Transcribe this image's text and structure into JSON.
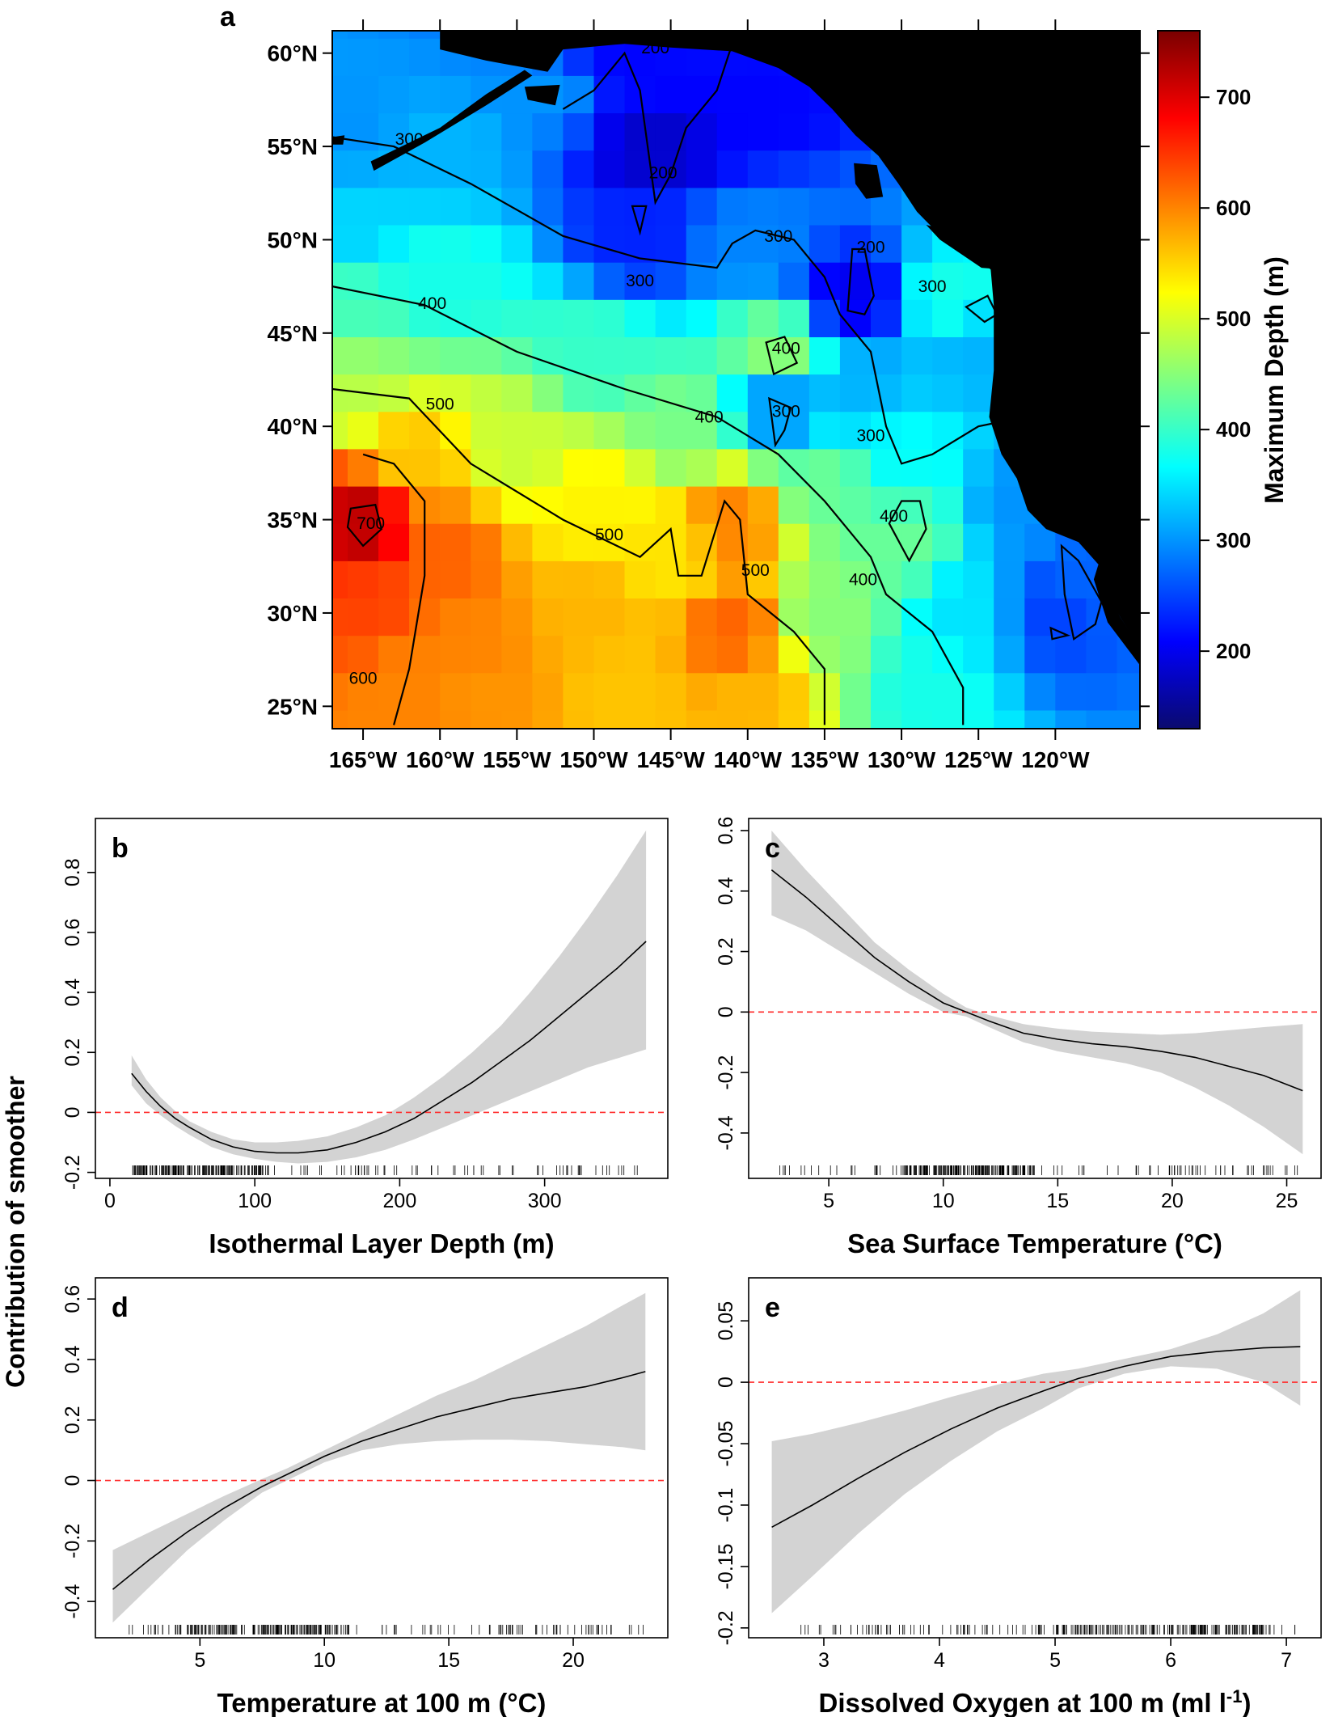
{
  "figure": {
    "panel_a_label": "a",
    "colorbar_title": "Maximum Depth (m)",
    "gam_ylabel": "Contribution of smoother"
  },
  "colors": {
    "land": "#000000",
    "contour": "#000000",
    "band": "#d3d3d3",
    "smooth_line": "#000000",
    "zero_line": "#ff2a2a",
    "colormap": [
      "#0a0a6e",
      "#0000ff",
      "#0080ff",
      "#00ffff",
      "#80ff80",
      "#ffff00",
      "#ff8000",
      "#ff0000",
      "#7a0000"
    ]
  },
  "chart_data": [
    {
      "type": "heatmap",
      "panel": "a",
      "title": "",
      "xlabel": "",
      "ylabel": "",
      "xlim": [
        -167,
        -114.5
      ],
      "ylim": [
        23.8,
        61.2
      ],
      "x_ticks": [
        {
          "v": -165,
          "label": "165°W"
        },
        {
          "v": -160,
          "label": "160°W"
        },
        {
          "v": -155,
          "label": "155°W"
        },
        {
          "v": -150,
          "label": "150°W"
        },
        {
          "v": -145,
          "label": "145°W"
        },
        {
          "v": -140,
          "label": "140°W"
        },
        {
          "v": -135,
          "label": "135°W"
        },
        {
          "v": -130,
          "label": "130°W"
        },
        {
          "v": -125,
          "label": "125°W"
        },
        {
          "v": -120,
          "label": "120°W"
        }
      ],
      "y_ticks": [
        {
          "v": 25,
          "label": "25°N"
        },
        {
          "v": 30,
          "label": "30°N"
        },
        {
          "v": 35,
          "label": "35°N"
        },
        {
          "v": 40,
          "label": "40°N"
        },
        {
          "v": 45,
          "label": "45°N"
        },
        {
          "v": 50,
          "label": "50°N"
        },
        {
          "v": 55,
          "label": "55°N"
        },
        {
          "v": 60,
          "label": "60°N"
        }
      ],
      "colorbar": {
        "min": 130,
        "max": 760,
        "ticks": [
          200,
          300,
          400,
          500,
          600,
          700
        ],
        "label": "Maximum Depth (m)"
      },
      "grid_cell_deg": 2,
      "anchor_points": [
        [
          -165,
          35,
          720
        ],
        [
          -165,
          30,
          640
        ],
        [
          -163,
          26,
          600
        ],
        [
          -162,
          38,
          560
        ],
        [
          -160,
          33,
          620
        ],
        [
          -158,
          28,
          600
        ],
        [
          -166,
          42,
          480
        ],
        [
          -166,
          46,
          410
        ],
        [
          -166,
          51,
          340
        ],
        [
          -166,
          56,
          300
        ],
        [
          -160,
          48,
          380
        ],
        [
          -160,
          55,
          320
        ],
        [
          -153,
          58,
          300
        ],
        [
          -148,
          59,
          210
        ],
        [
          -146,
          55,
          180
        ],
        [
          -147,
          50,
          230
        ],
        [
          -140,
          57,
          210
        ],
        [
          -140,
          50,
          290
        ],
        [
          -150,
          44,
          400
        ],
        [
          -155,
          39,
          490
        ],
        [
          -150,
          36,
          530
        ],
        [
          -150,
          30,
          570
        ],
        [
          -145,
          33,
          540
        ],
        [
          -141,
          35,
          600
        ],
        [
          -141,
          29,
          620
        ],
        [
          -140,
          26,
          570
        ],
        [
          -135,
          30,
          450
        ],
        [
          -135,
          37,
          430
        ],
        [
          -138,
          41,
          300
        ],
        [
          -138,
          44,
          450
        ],
        [
          -133,
          47,
          200
        ],
        [
          -133,
          42,
          320
        ],
        [
          -130,
          38,
          370
        ],
        [
          -130,
          34,
          430
        ],
        [
          -126,
          30,
          350
        ],
        [
          -125,
          44,
          320
        ],
        [
          -127,
          47,
          380
        ],
        [
          -122,
          36,
          300
        ],
        [
          -120,
          30,
          250
        ],
        [
          -118,
          32,
          270
        ],
        [
          -148,
          26,
          560
        ],
        [
          -157,
          26,
          590
        ],
        [
          -163,
          24,
          600
        ],
        [
          -144,
          40,
          440
        ],
        [
          -128,
          26,
          380
        ]
      ],
      "contours": [
        {
          "level": 300,
          "points": [
            [
              -167,
              55.5
            ],
            [
              -163,
              55
            ],
            [
              -158,
              53
            ],
            [
              -152,
              50.2
            ],
            [
              -147,
              49
            ],
            [
              -142,
              48.5
            ],
            [
              -141,
              49.8
            ],
            [
              -139.5,
              50.5
            ],
            [
              -137,
              50
            ],
            [
              -135,
              48
            ],
            [
              -134,
              46
            ],
            [
              -132,
              44
            ],
            [
              -131,
              40
            ],
            [
              -130,
              38
            ],
            [
              -128,
              38.5
            ],
            [
              -125,
              40
            ],
            [
              -122,
              40.5
            ],
            [
              -119,
              41
            ]
          ]
        },
        {
          "level": 400,
          "points": [
            [
              -167,
              47.5
            ],
            [
              -161,
              46.5
            ],
            [
              -155,
              44
            ],
            [
              -148,
              42
            ],
            [
              -142,
              40.5
            ],
            [
              -138,
              38.5
            ],
            [
              -135,
              36
            ],
            [
              -132,
              33
            ],
            [
              -131,
              31
            ],
            [
              -128,
              29
            ],
            [
              -126,
              26
            ],
            [
              -126,
              24
            ]
          ]
        },
        {
          "level": 500,
          "points": [
            [
              -167,
              42
            ],
            [
              -162,
              41.5
            ],
            [
              -158,
              38
            ],
            [
              -152,
              35
            ],
            [
              -147,
              33
            ],
            [
              -145,
              34.5
            ],
            [
              -144.5,
              32
            ],
            [
              -143,
              32
            ],
            [
              -141.5,
              36
            ],
            [
              -140.5,
              35
            ],
            [
              -140,
              31
            ],
            [
              -137,
              29
            ],
            [
              -135,
              27
            ],
            [
              -135,
              24
            ]
          ]
        },
        {
          "level": 600,
          "points": [
            [
              -163,
              24
            ],
            [
              -162,
              27
            ],
            [
              -161,
              32
            ],
            [
              -161,
              36
            ],
            [
              -163,
              38
            ],
            [
              -165,
              38.5
            ]
          ]
        },
        {
          "level": 200,
          "points": [
            [
              -152,
              57
            ],
            [
              -150,
              58
            ],
            [
              -148,
              60
            ],
            [
              -147,
              58
            ],
            [
              -146.5,
              55
            ],
            [
              -146,
              52
            ],
            [
              -145,
              53.5
            ],
            [
              -144,
              56
            ],
            [
              -142,
              58
            ],
            [
              -141,
              60.5
            ]
          ]
        }
      ],
      "contour_labels": [
        {
          "text": "300",
          "x": -162,
          "y": 55.4
        },
        {
          "text": "300",
          "x": -147,
          "y": 47.8
        },
        {
          "text": "300",
          "x": -138,
          "y": 50.2
        },
        {
          "text": "300",
          "x": -128,
          "y": 47.5
        },
        {
          "text": "300",
          "x": -132,
          "y": 39.5
        },
        {
          "text": "300",
          "x": -137.5,
          "y": 40.8
        },
        {
          "text": "400",
          "x": -160.5,
          "y": 46.6
        },
        {
          "text": "400",
          "x": -142.5,
          "y": 40.5
        },
        {
          "text": "400",
          "x": -137.5,
          "y": 44.2
        },
        {
          "text": "400",
          "x": -130.5,
          "y": 35.2
        },
        {
          "text": "400",
          "x": -132.5,
          "y": 31.8
        },
        {
          "text": "500",
          "x": -160,
          "y": 41.2
        },
        {
          "text": "500",
          "x": -149,
          "y": 34.2
        },
        {
          "text": "500",
          "x": -139.5,
          "y": 32.3
        },
        {
          "text": "600",
          "x": -165,
          "y": 26.5
        },
        {
          "text": "700",
          "x": -164.5,
          "y": 34.8
        },
        {
          "text": "200",
          "x": -146,
          "y": 60.3
        },
        {
          "text": "200",
          "x": -145.5,
          "y": 53.6
        },
        {
          "text": "200",
          "x": -132,
          "y": 49.6
        }
      ]
    },
    {
      "type": "line",
      "panel": "b",
      "title": "b",
      "xlabel": "Isothermal Layer Depth (m)",
      "ylabel": "Contribution of smoother",
      "xlim": [
        -10,
        385
      ],
      "ylim": [
        -0.22,
        0.98
      ],
      "x_ticks": [
        0,
        100,
        200,
        300
      ],
      "y_ticks": [
        -0.2,
        0,
        0.2,
        0.4,
        0.6,
        0.8
      ],
      "y_tick_labels": [
        "-0.2",
        "0",
        "0.2",
        "0.4",
        "0.6",
        "0.8"
      ],
      "x": [
        15,
        25,
        35,
        45,
        55,
        70,
        85,
        100,
        115,
        130,
        150,
        170,
        190,
        210,
        230,
        250,
        270,
        290,
        310,
        330,
        350,
        370
      ],
      "y": [
        0.13,
        0.07,
        0.02,
        -0.02,
        -0.05,
        -0.09,
        -0.115,
        -0.13,
        -0.135,
        -0.135,
        -0.125,
        -0.1,
        -0.065,
        -0.02,
        0.04,
        0.1,
        0.17,
        0.24,
        0.32,
        0.4,
        0.48,
        0.57
      ],
      "upper": [
        0.19,
        0.11,
        0.05,
        0.005,
        -0.03,
        -0.065,
        -0.09,
        -0.1,
        -0.1,
        -0.095,
        -0.08,
        -0.05,
        -0.01,
        0.05,
        0.12,
        0.2,
        0.29,
        0.4,
        0.52,
        0.65,
        0.79,
        0.94
      ],
      "lower": [
        0.09,
        0.03,
        -0.01,
        -0.045,
        -0.075,
        -0.115,
        -0.14,
        -0.155,
        -0.165,
        -0.17,
        -0.165,
        -0.15,
        -0.125,
        -0.09,
        -0.05,
        -0.01,
        0.03,
        0.07,
        0.11,
        0.15,
        0.18,
        0.21
      ],
      "rug_range": [
        15,
        370
      ],
      "rug_dense": [
        15,
        110
      ]
    },
    {
      "type": "line",
      "panel": "c",
      "title": "c",
      "xlabel": "Sea Surface Temperature (°C)",
      "ylabel": "",
      "xlim": [
        1.5,
        26.5
      ],
      "ylim": [
        -0.55,
        0.64
      ],
      "x_ticks": [
        5,
        10,
        15,
        20,
        25
      ],
      "y_ticks": [
        -0.4,
        -0.2,
        0,
        0.2,
        0.4,
        0.6
      ],
      "y_tick_labels": [
        "-0.4",
        "-0.2",
        "0",
        "0.2",
        "0.4",
        "0.6"
      ],
      "x": [
        2.5,
        4,
        5.5,
        7,
        8.5,
        10,
        11,
        12,
        13.5,
        15,
        16.5,
        18,
        19.5,
        21,
        22.5,
        24,
        25.7
      ],
      "y": [
        0.47,
        0.38,
        0.28,
        0.18,
        0.1,
        0.03,
        0.0,
        -0.03,
        -0.07,
        -0.09,
        -0.105,
        -0.115,
        -0.13,
        -0.15,
        -0.18,
        -0.21,
        -0.26
      ],
      "upper": [
        0.6,
        0.47,
        0.35,
        0.23,
        0.14,
        0.06,
        0.015,
        -0.01,
        -0.04,
        -0.055,
        -0.065,
        -0.07,
        -0.075,
        -0.07,
        -0.06,
        -0.05,
        -0.04
      ],
      "lower": [
        0.32,
        0.27,
        0.2,
        0.13,
        0.06,
        0.0,
        -0.015,
        -0.05,
        -0.1,
        -0.13,
        -0.15,
        -0.17,
        -0.2,
        -0.25,
        -0.31,
        -0.38,
        -0.47
      ],
      "rug_range": [
        2.5,
        25.7
      ],
      "rug_dense": [
        8,
        14
      ]
    },
    {
      "type": "line",
      "panel": "d",
      "title": "d",
      "xlabel": "Temperature at 100 m (°C)",
      "ylabel": "",
      "xlim": [
        0.8,
        23.8
      ],
      "ylim": [
        -0.52,
        0.67
      ],
      "x_ticks": [
        5,
        10,
        15,
        20
      ],
      "y_ticks": [
        -0.4,
        -0.2,
        0,
        0.2,
        0.4,
        0.6
      ],
      "y_tick_labels": [
        "-0.4",
        "-0.2",
        "0",
        "0.2",
        "0.4",
        "0.6"
      ],
      "x": [
        1.5,
        3,
        4.5,
        6,
        7.5,
        8.5,
        10,
        11.5,
        13,
        14.5,
        16,
        17.5,
        19,
        20.5,
        22,
        22.9
      ],
      "y": [
        -0.36,
        -0.26,
        -0.17,
        -0.09,
        -0.02,
        0.02,
        0.08,
        0.13,
        0.17,
        0.21,
        0.24,
        0.27,
        0.29,
        0.31,
        0.34,
        0.36
      ],
      "upper": [
        -0.23,
        -0.17,
        -0.11,
        -0.05,
        0.005,
        0.04,
        0.1,
        0.16,
        0.22,
        0.28,
        0.33,
        0.39,
        0.45,
        0.51,
        0.58,
        0.62
      ],
      "lower": [
        -0.47,
        -0.35,
        -0.23,
        -0.13,
        -0.04,
        0.0,
        0.06,
        0.1,
        0.12,
        0.13,
        0.135,
        0.135,
        0.13,
        0.12,
        0.11,
        0.1
      ],
      "rug_range": [
        1.5,
        22.9
      ],
      "rug_dense": [
        4,
        11
      ]
    },
    {
      "type": "line",
      "panel": "e",
      "title": "e",
      "xlabel": "Dissolved Oxygen at 100 m (ml l",
      "xlabel_sup": "-1",
      "xlabel_end": ")",
      "ylabel": "",
      "xlim": [
        2.35,
        7.3
      ],
      "ylim": [
        -0.208,
        0.085
      ],
      "x_ticks": [
        3,
        4,
        5,
        6,
        7
      ],
      "y_ticks": [
        -0.2,
        -0.15,
        -0.1,
        -0.05,
        0,
        0.05
      ],
      "y_tick_labels": [
        "-0.2",
        "-0.15",
        "-0.1",
        "-0.05",
        "0",
        "0.05"
      ],
      "x": [
        2.55,
        2.9,
        3.3,
        3.7,
        4.1,
        4.5,
        4.9,
        5.2,
        5.6,
        6.0,
        6.4,
        6.8,
        7.12
      ],
      "y": [
        -0.118,
        -0.1,
        -0.078,
        -0.057,
        -0.038,
        -0.021,
        -0.007,
        0.003,
        0.013,
        0.021,
        0.025,
        0.028,
        0.029
      ],
      "upper": [
        -0.048,
        -0.042,
        -0.033,
        -0.023,
        -0.012,
        -0.002,
        0.007,
        0.011,
        0.019,
        0.027,
        0.039,
        0.056,
        0.075
      ],
      "lower": [
        -0.188,
        -0.158,
        -0.123,
        -0.091,
        -0.064,
        -0.04,
        -0.021,
        -0.005,
        0.007,
        0.013,
        0.011,
        0.0,
        -0.019
      ],
      "rug_range": [
        2.8,
        7.1
      ],
      "rug_dense": [
        4.8,
        6.8
      ]
    }
  ]
}
